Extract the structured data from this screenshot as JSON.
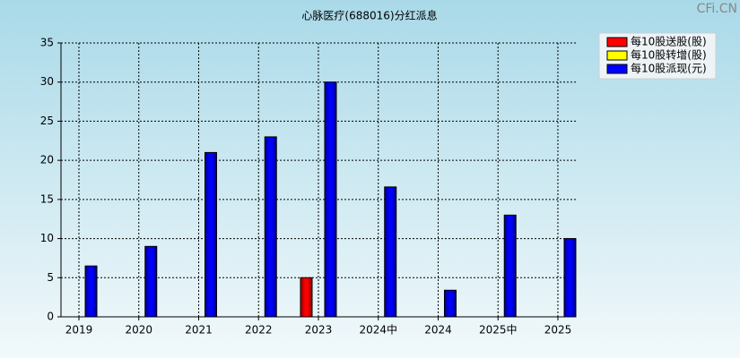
{
  "chart_data": {
    "type": "bar",
    "title": "心脉医疗(688016)分红派息",
    "watermark": "CFi.CN",
    "categories": [
      "2019",
      "2020",
      "2021",
      "2022",
      "2023",
      "2024中",
      "2024",
      "2025中",
      "2025"
    ],
    "series": [
      {
        "name": "每10股送股(股)",
        "color": "#ff0000",
        "values": [
          null,
          null,
          null,
          null,
          5,
          null,
          null,
          null,
          null
        ]
      },
      {
        "name": "每10股转增(股)",
        "color": "#ffff00",
        "values": [
          null,
          null,
          null,
          null,
          null,
          null,
          null,
          null,
          null
        ]
      },
      {
        "name": "每10股派现(元)",
        "color": "#0000ff",
        "values": [
          6.5,
          9,
          21,
          23,
          30,
          16.6,
          3.4,
          13,
          10
        ]
      }
    ],
    "ylim": [
      0,
      35
    ],
    "yticks": [
      0,
      5,
      10,
      15,
      20,
      25,
      30,
      35
    ],
    "grid": true,
    "legend": "top-right"
  }
}
